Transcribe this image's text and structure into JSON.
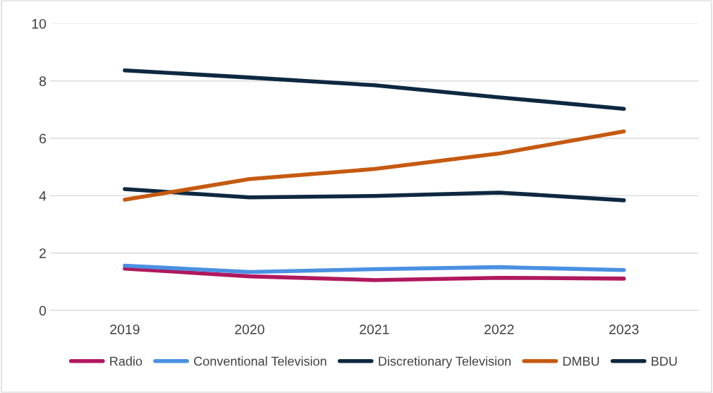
{
  "chart_data": {
    "type": "line",
    "categories": [
      "2019",
      "2020",
      "2021",
      "2022",
      "2023"
    ],
    "series": [
      {
        "name": "Radio",
        "color": "#b0185e",
        "values": [
          1.46,
          1.19,
          1.06,
          1.14,
          1.11
        ]
      },
      {
        "name": "Conventional Television",
        "color": "#4a90e2",
        "values": [
          1.56,
          1.34,
          1.44,
          1.51,
          1.41
        ]
      },
      {
        "name": "Discretionary Television",
        "color": "#0e2841",
        "values": [
          4.23,
          3.94,
          3.99,
          4.11,
          3.84
        ]
      },
      {
        "name": "DMBU",
        "color": "#c55a11",
        "values": [
          3.86,
          4.58,
          4.93,
          5.47,
          6.24
        ]
      },
      {
        "name": "BDU",
        "color": "#0e2841",
        "values": [
          8.37,
          8.12,
          7.85,
          7.43,
          7.03
        ]
      }
    ],
    "ylim": [
      0,
      10
    ],
    "yticks": [
      0,
      2,
      4,
      6,
      8,
      10
    ],
    "grid": "y",
    "legend": "bottom",
    "marker": "none",
    "line_style": "solid"
  }
}
